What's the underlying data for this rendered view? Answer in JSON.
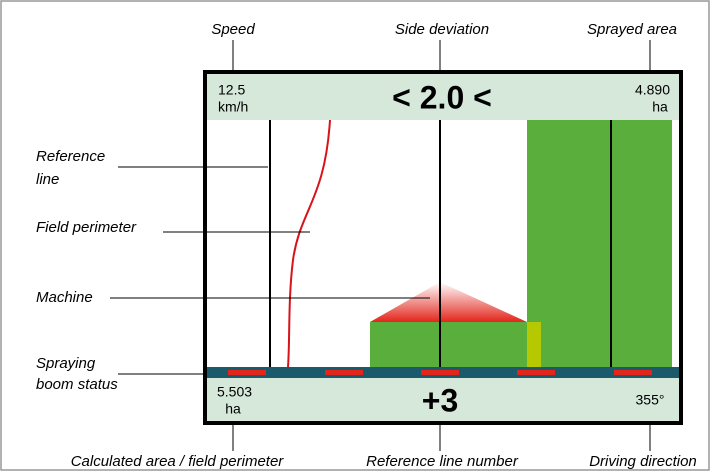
{
  "callouts": {
    "speed": "Speed",
    "side_deviation": "Side deviation",
    "sprayed_area": "Sprayed area",
    "reference_line": [
      "Reference",
      "line"
    ],
    "field_perimeter": "Field perimeter",
    "machine": "Machine",
    "spraying_boom_status": [
      "Spraying",
      "boom status"
    ],
    "calculated_area": "Calculated area / field perimeter",
    "reference_line_number": "Reference line number",
    "driving_direction": "Driving direction"
  },
  "screen": {
    "speed": {
      "value": "12.5",
      "unit": "km/h"
    },
    "side_deviation": "< 2.0 <",
    "sprayed_area": {
      "value": "4.890",
      "unit": "ha"
    },
    "calculated_area": {
      "value": "5.503",
      "unit": "ha"
    },
    "reference_line_number": "+3",
    "driving_direction": "355°"
  }
}
